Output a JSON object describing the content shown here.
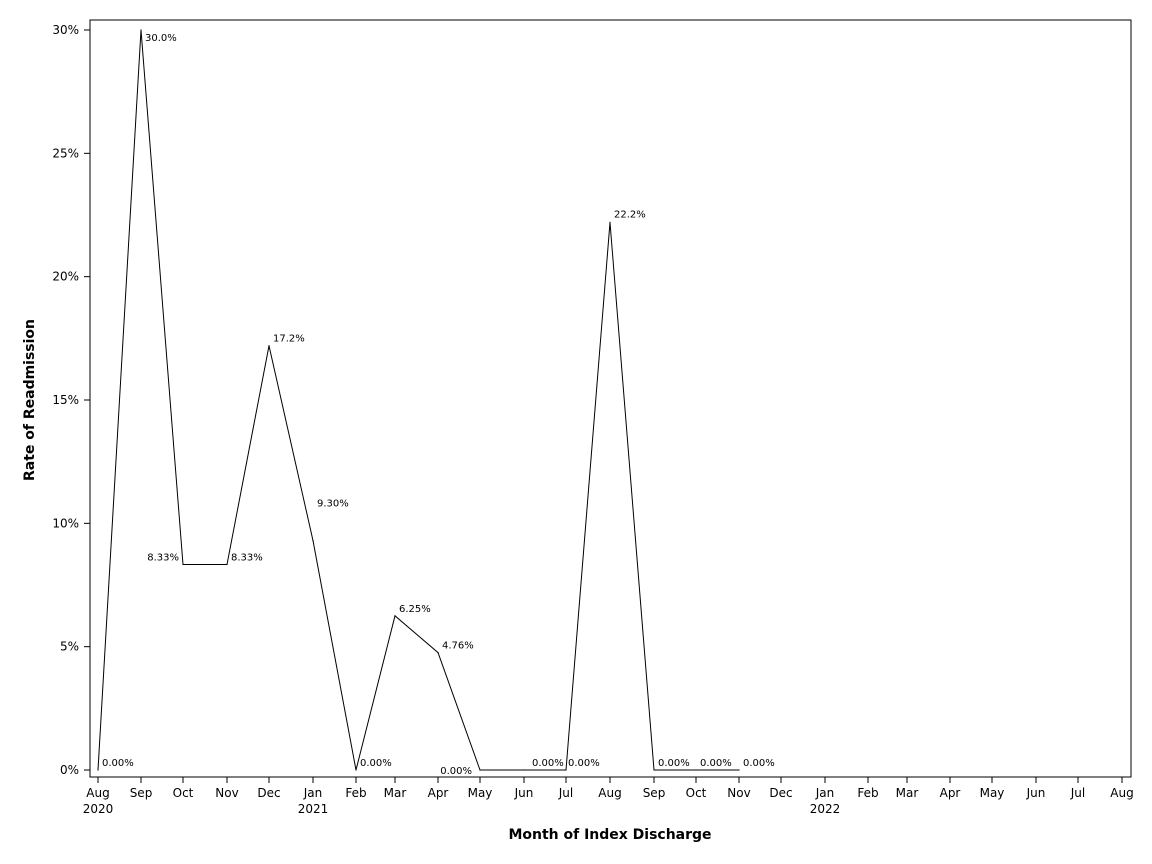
{
  "chart_data": {
    "type": "line",
    "title": "",
    "xlabel": "Month of Index Discharge",
    "ylabel": "Rate of Readmission",
    "grid": false,
    "legend": "none",
    "x": [
      "2020-08",
      "2020-09",
      "2020-10",
      "2020-11",
      "2020-12",
      "2021-01",
      "2021-02",
      "2021-03",
      "2021-04",
      "2021-05",
      "2021-06",
      "2021-07",
      "2021-08",
      "2021-09",
      "2021-10",
      "2021-11"
    ],
    "series": [
      {
        "values": [
          0,
          30.0,
          8.33,
          8.33,
          17.2,
          9.3,
          0,
          6.25,
          4.76,
          0,
          0,
          0,
          22.2,
          0,
          0,
          0
        ],
        "point_labels": [
          "0.00%",
          "30.0%",
          "8.33%",
          "8.33%",
          "17.2%",
          "9.30%",
          "0.00%",
          "6.25%",
          "4.76%",
          "0.00%",
          "0.00%",
          "0.00%",
          "22.2%",
          "0.00%",
          "0.00%",
          "0.00%"
        ],
        "color": "#000000"
      }
    ],
    "xlim": [
      "2020-08",
      "2022-08"
    ],
    "ylim": [
      0,
      30
    ],
    "x_ticks": {
      "months": [
        "Aug",
        "Sep",
        "Oct",
        "Nov",
        "Dec",
        "Jan",
        "Feb",
        "Mar",
        "Apr",
        "May",
        "Jun",
        "Jul",
        "Aug",
        "Sep",
        "Oct",
        "Nov",
        "Dec",
        "Jan",
        "Feb",
        "Mar",
        "Apr",
        "May",
        "Jun",
        "Jul",
        "Aug"
      ],
      "years": [
        {
          "label": "2020",
          "index": 0
        },
        {
          "label": "2021",
          "index": 5
        },
        {
          "label": "2022",
          "index": 17
        }
      ]
    },
    "y_ticks": [
      {
        "value": 0,
        "label": "0%"
      },
      {
        "value": 5,
        "label": "5%"
      },
      {
        "value": 10,
        "label": "10%"
      },
      {
        "value": 15,
        "label": "15%"
      },
      {
        "value": 20,
        "label": "20%"
      },
      {
        "value": 25,
        "label": "25%"
      },
      {
        "value": 30,
        "label": "30%"
      }
    ]
  }
}
